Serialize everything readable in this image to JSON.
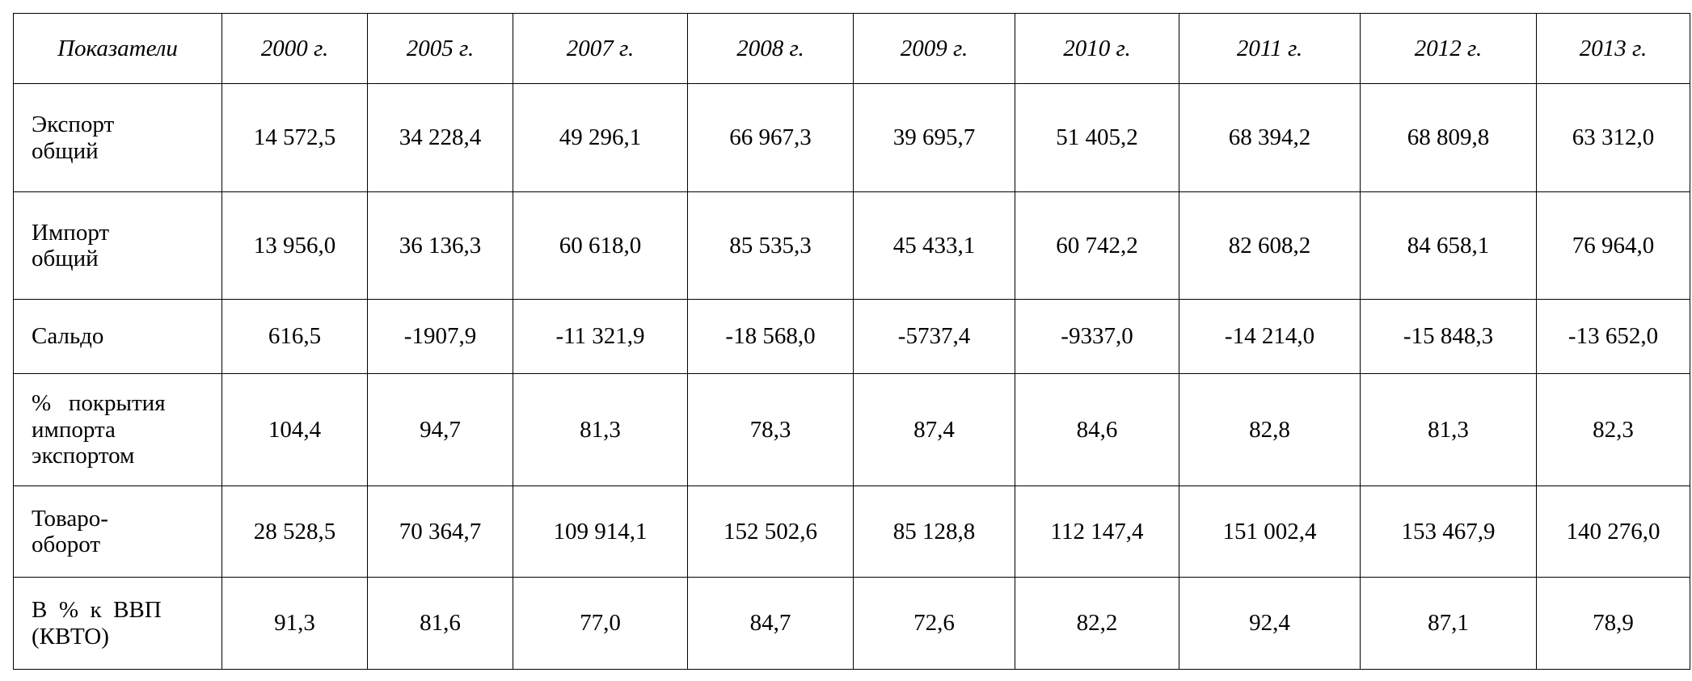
{
  "table": {
    "header": [
      "Показатели",
      "2000 г.",
      "2005 г.",
      "2007 г.",
      "2008 г.",
      "2009 г.",
      "2010 г.",
      "2011 г.",
      "2012 г.",
      "2013 г."
    ],
    "rows": [
      [
        "Экспорт\nобщий",
        "14 572,5",
        "34 228,4",
        "49 296,1",
        "66 967,3",
        "39 695,7",
        "51 405,2",
        "68 394,2",
        "68 809,8",
        "63 312,0"
      ],
      [
        "Импорт\nобщий",
        "13 956,0",
        "36 136,3",
        "60 618,0",
        "85 535,3",
        "45 433,1",
        "60 742,2",
        "82 608,2",
        "84 658,1",
        "76 964,0"
      ],
      [
        "Сальдо",
        "616,5",
        "-1907,9",
        "-11 321,9",
        "-18 568,0",
        "-5737,4",
        "-9337,0",
        "-14 214,0",
        "-15 848,3",
        "-13 652,0"
      ],
      [
        "%   покрытия\nимпорта\nэкспортом",
        "104,4",
        "94,7",
        "81,3",
        "78,3",
        "87,4",
        "84,6",
        "82,8",
        "81,3",
        "82,3"
      ],
      [
        "Товаро-\nоборот",
        "28 528,5",
        "70 364,7",
        "109 914,1",
        "152 502,6",
        "85 128,8",
        "112 147,4",
        "151 002,4",
        "153 467,9",
        "140 276,0"
      ],
      [
        "В  %  к  ВВП\n(КВТО)",
        "91,3",
        "81,6",
        "77,0",
        "84,7",
        "72,6",
        "82,2",
        "92,4",
        "87,1",
        "78,9"
      ]
    ]
  }
}
